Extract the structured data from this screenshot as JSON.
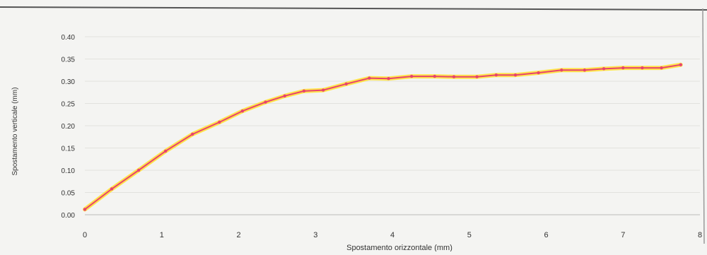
{
  "chart_data": {
    "type": "line",
    "title": "",
    "xlabel": "Spostamento orizzontale (mm)",
    "ylabel": "Spostamento verticale (mm)",
    "xlim": [
      0,
      8
    ],
    "ylim": [
      0,
      0.4
    ],
    "x_ticks": [
      "0",
      "1",
      "2",
      "3",
      "4",
      "5",
      "6",
      "7",
      "8"
    ],
    "y_ticks": [
      "0.00",
      "0.05",
      "0.10",
      "0.15",
      "0.20",
      "0.25",
      "0.30",
      "0.35",
      "0.40"
    ],
    "grid": "horizontal",
    "legend": "none",
    "series": [
      {
        "color": "#e8436e",
        "glow_color": "#ffe23a",
        "x": [
          0.0,
          0.35,
          0.7,
          1.05,
          1.4,
          1.75,
          2.05,
          2.35,
          2.6,
          2.85,
          3.1,
          3.4,
          3.7,
          3.95,
          4.25,
          4.55,
          4.8,
          5.1,
          5.35,
          5.6,
          5.9,
          6.2,
          6.5,
          6.75,
          7.0,
          7.25,
          7.5,
          7.75
        ],
        "y": [
          0.012,
          0.058,
          0.1,
          0.143,
          0.181,
          0.208,
          0.233,
          0.253,
          0.267,
          0.278,
          0.28,
          0.294,
          0.307,
          0.306,
          0.311,
          0.311,
          0.31,
          0.31,
          0.314,
          0.314,
          0.319,
          0.325,
          0.325,
          0.328,
          0.33,
          0.33,
          0.33,
          0.337
        ]
      }
    ]
  }
}
